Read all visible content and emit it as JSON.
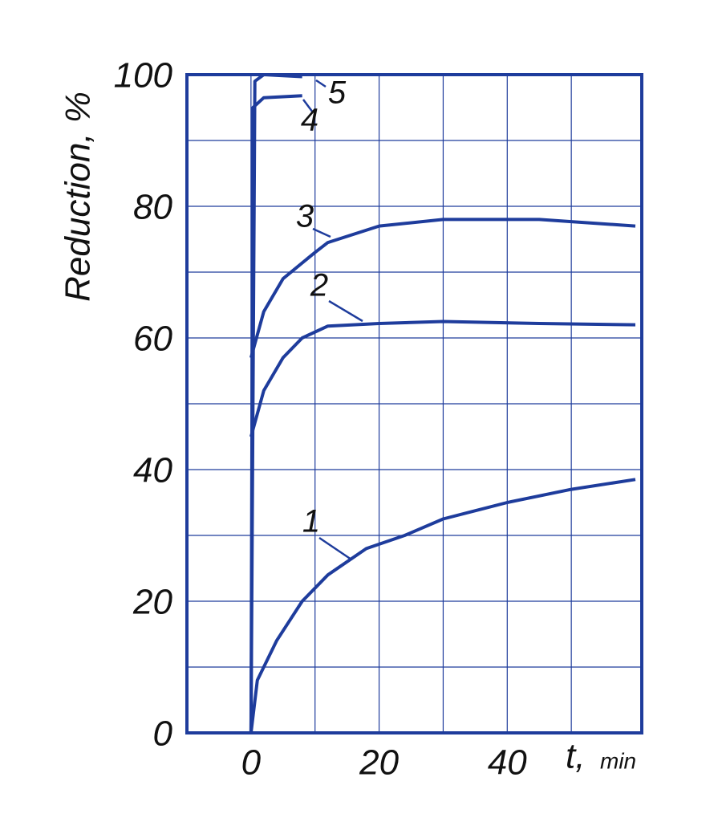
{
  "chart_data": {
    "type": "line",
    "ylabel": "Reduction, %",
    "xlabel": "t,",
    "xunit": "min",
    "color": "#1e3c9c",
    "xlim": [
      -10,
      61
    ],
    "ylim": [
      0,
      100
    ],
    "xticks": [
      0,
      20,
      40
    ],
    "yticks": [
      0,
      20,
      40,
      60,
      80,
      100
    ],
    "xminor": [
      10,
      30,
      50
    ],
    "yminor": [
      10,
      30,
      50,
      70,
      90
    ],
    "grid": true,
    "series": [
      {
        "name": "1",
        "x": [
          0,
          1,
          4,
          8,
          12,
          18,
          24,
          30,
          40,
          50,
          60
        ],
        "values": [
          0,
          8,
          14,
          20,
          24,
          28,
          30,
          32.5,
          35,
          37,
          38.5
        ]
      },
      {
        "name": "2",
        "x": [
          0,
          2,
          5,
          8,
          12,
          20,
          30,
          45,
          60
        ],
        "values": [
          45,
          52,
          57,
          60,
          61.8,
          62.2,
          62.5,
          62.2,
          62
        ]
      },
      {
        "name": "3",
        "x": [
          0,
          2,
          5,
          10,
          12,
          20,
          30,
          45,
          60
        ],
        "values": [
          57,
          64,
          69,
          73,
          74.5,
          77,
          78,
          78,
          77
        ]
      },
      {
        "name": "4",
        "x": [
          0,
          0.3,
          2,
          8
        ],
        "values": [
          0,
          95,
          96.5,
          96.8
        ]
      },
      {
        "name": "5",
        "x": [
          0,
          0.6,
          2,
          8
        ],
        "values": [
          0,
          99,
          100,
          99.7
        ]
      }
    ]
  }
}
